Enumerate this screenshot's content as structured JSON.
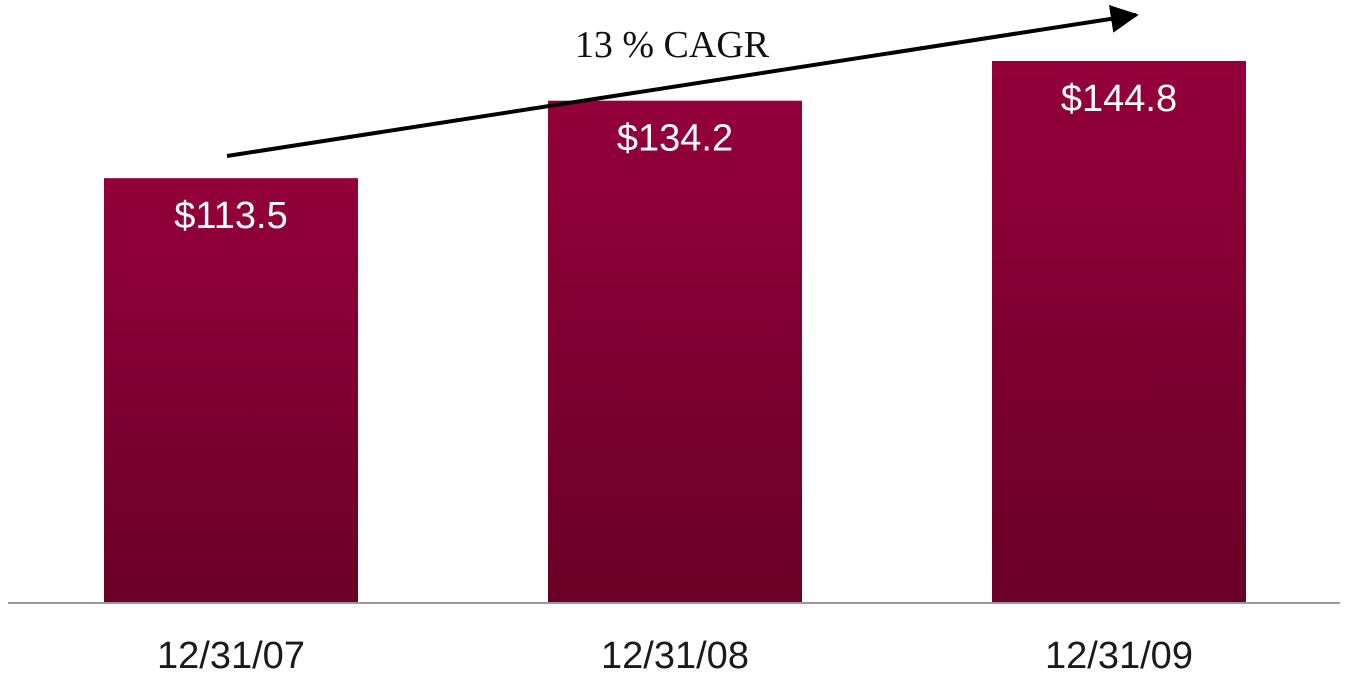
{
  "chart_data": {
    "type": "bar",
    "title": "",
    "xlabel": "",
    "ylabel": "",
    "categories": [
      "12/31/07",
      "12/31/08",
      "12/31/09"
    ],
    "values": [
      113.5,
      134.2,
      144.8
    ],
    "data_labels": [
      "$113.5",
      "$134.2",
      "$144.8"
    ],
    "ylim": [
      0,
      165
    ],
    "grid": false,
    "legend": "none",
    "annotations": [
      {
        "text": "13 % CAGR",
        "type": "trend-arrow",
        "from_category": "12/31/07",
        "to_category": "12/31/09"
      }
    ],
    "colors": {
      "bar_top": "#94003A",
      "bar_bottom": "#6A0026",
      "axis": "#9a9a9a",
      "arrow": "#000000"
    }
  }
}
